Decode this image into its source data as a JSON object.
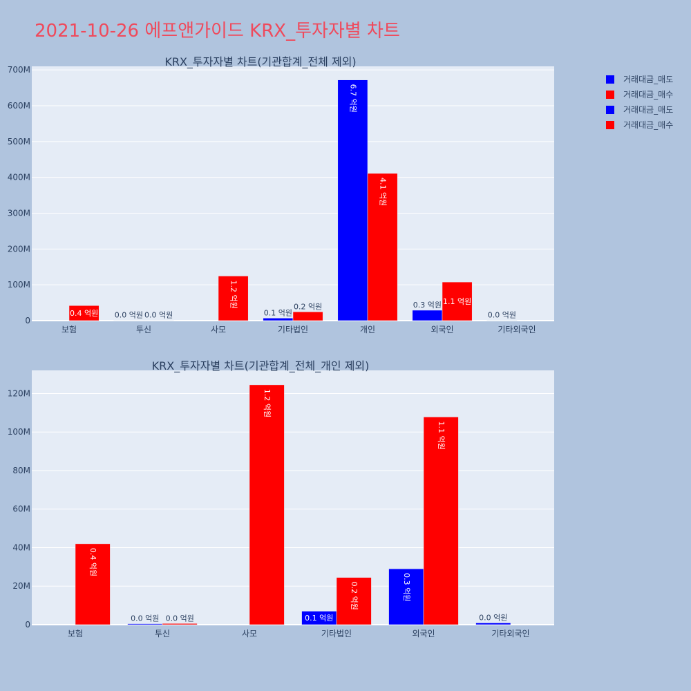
{
  "page": {
    "title": "2021-10-26 에프앤가이드 KRX_투자자별 차트"
  },
  "colors": {
    "sell": "#0000ff",
    "buy": "#ff0000",
    "plot_bg": "#e5ecf6",
    "paper_bg": "#b0c4de"
  },
  "legend": [
    {
      "label": "거래대금_매도",
      "color": "#0000ff"
    },
    {
      "label": "거래대금_매수",
      "color": "#ff0000"
    },
    {
      "label": "거래대금_매도",
      "color": "#0000ff"
    },
    {
      "label": "거래대금_매수",
      "color": "#ff0000"
    }
  ],
  "chart_data": [
    {
      "type": "bar",
      "title": "KRX_투자자별 차트(기관합계_전체 제외)",
      "categories": [
        "보험",
        "투신",
        "사모",
        "기타법인",
        "개인",
        "외국인",
        "기타외국인"
      ],
      "ylim": [
        0,
        710000000
      ],
      "yticks": [
        0,
        100000000,
        200000000,
        300000000,
        400000000,
        500000000,
        600000000,
        700000000
      ],
      "ytick_labels": [
        "0",
        "100M",
        "200M",
        "300M",
        "400M",
        "500M",
        "600M",
        "700M"
      ],
      "grid": true,
      "legend_position": "top-right",
      "series": [
        {
          "name": "거래대금_매도",
          "color": "#0000ff",
          "values": [
            0,
            500000,
            0,
            7000000,
            672000000,
            29000000,
            900000
          ],
          "labels": [
            "",
            "0.0 억원",
            "",
            "0.1 억원",
            "6.7 억원",
            "0.3 억원",
            "0.0 억원"
          ]
        },
        {
          "name": "거래대금_매수",
          "color": "#ff0000",
          "values": [
            42000000,
            600000,
            124500000,
            24500000,
            411000000,
            107800000,
            0
          ],
          "labels": [
            "0.4 억원",
            "0.0 억원",
            "1.2 억원",
            "0.2 억원",
            "4.1 억원",
            "1.1 억원",
            ""
          ]
        }
      ]
    },
    {
      "type": "bar",
      "title": "KRX_투자자별 차트(기관합계_전체_개인 제외)",
      "categories": [
        "보험",
        "투신",
        "사모",
        "기타법인",
        "외국인",
        "기타외국인"
      ],
      "ylim": [
        0,
        132000000
      ],
      "yticks": [
        0,
        20000000,
        40000000,
        60000000,
        80000000,
        100000000,
        120000000
      ],
      "ytick_labels": [
        "0",
        "20M",
        "40M",
        "60M",
        "80M",
        "100M",
        "120M"
      ],
      "grid": true,
      "series": [
        {
          "name": "거래대금_매도",
          "color": "#0000ff",
          "values": [
            0,
            500000,
            0,
            7000000,
            29000000,
            900000
          ],
          "labels": [
            "",
            "0.0 억원",
            "",
            "0.1 억원",
            "0.3 억원",
            "0.0 억원"
          ]
        },
        {
          "name": "거래대금_매수",
          "color": "#ff0000",
          "values": [
            42000000,
            600000,
            124500000,
            24500000,
            107800000,
            0
          ],
          "labels": [
            "0.4 억원",
            "0.0 억원",
            "1.2 억원",
            "0.2 억원",
            "1.1 억원",
            ""
          ]
        }
      ]
    }
  ]
}
